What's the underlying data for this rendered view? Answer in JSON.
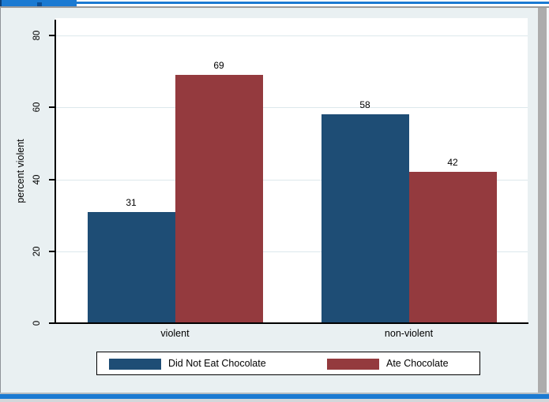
{
  "window": {
    "accent_color": "#1b7ad2",
    "canvas_color": "#e9f0f2"
  },
  "chart_data": {
    "type": "bar",
    "title": "",
    "categories": [
      "violent",
      "non-violent"
    ],
    "series": [
      {
        "name": "Did Not Eat Chocolate",
        "color": "#1e4d75",
        "values": [
          31,
          58
        ]
      },
      {
        "name": "Ate Chocolate",
        "color": "#943a3e",
        "values": [
          69,
          42
        ]
      }
    ],
    "bar_labels": [
      [
        "31",
        "69"
      ],
      [
        "58",
        "42"
      ]
    ],
    "xlabel": "",
    "ylabel": "percent violent",
    "ylim": [
      0,
      80
    ],
    "yticks": [
      0,
      20,
      40,
      60,
      80
    ],
    "grid": true,
    "gridline_color": "#dce8ec",
    "legend_position": "bottom",
    "plot_background": "#ffffff"
  }
}
